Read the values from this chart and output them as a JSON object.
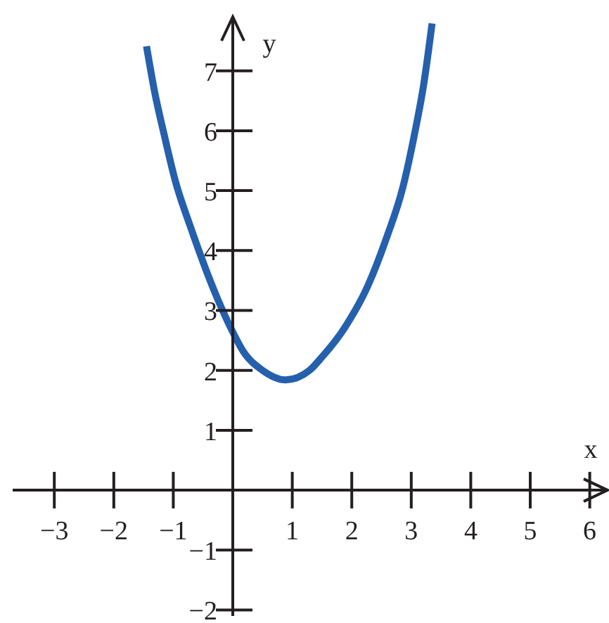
{
  "chart_data": {
    "type": "line",
    "xlabel": "x",
    "ylabel": "y",
    "x": [
      -1.45,
      -1.31,
      -1.15,
      -0.96,
      -0.72,
      -0.44,
      -0.25,
      -0.05,
      0.18,
      0.5,
      0.89,
      1.29,
      1.48,
      1.88,
      2.27,
      2.58,
      2.86,
      3.05,
      3.21,
      3.35
    ],
    "values": [
      7.41,
      6.63,
      5.92,
      5.14,
      4.42,
      3.65,
      3.18,
      2.74,
      2.31,
      2.0,
      1.84,
      2.0,
      2.2,
      2.71,
      3.41,
      4.2,
      5.06,
      5.92,
      6.78,
      7.79
    ],
    "color": "#2560ad",
    "xlim": [
      -3.7,
      6.3
    ],
    "ylim": [
      -2.1,
      7.9
    ],
    "xticks": [
      {
        "value": -3,
        "label": "−3"
      },
      {
        "value": -2,
        "label": "−2"
      },
      {
        "value": -1,
        "label": "−1"
      },
      1,
      2,
      3,
      4,
      5,
      6
    ],
    "yticks": [
      {
        "value": -2,
        "label": "−2"
      },
      {
        "value": -1,
        "label": "−1"
      },
      1,
      2,
      3,
      4,
      5,
      6,
      7
    ]
  }
}
